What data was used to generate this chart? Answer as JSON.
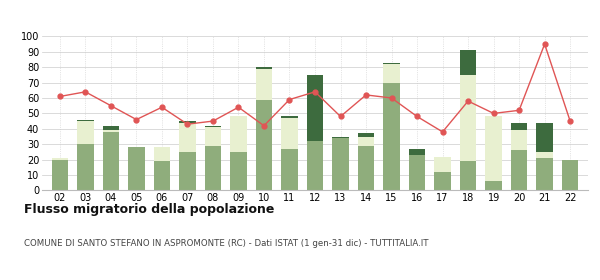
{
  "years": [
    "02",
    "03",
    "04",
    "05",
    "06",
    "07",
    "08",
    "09",
    "10",
    "11",
    "12",
    "13",
    "14",
    "15",
    "16",
    "17",
    "18",
    "19",
    "20",
    "21",
    "22"
  ],
  "iscritti_altri_comuni": [
    20,
    30,
    38,
    28,
    19,
    25,
    29,
    25,
    59,
    27,
    32,
    34,
    29,
    70,
    23,
    12,
    19,
    6,
    26,
    21,
    20
  ],
  "iscritti_estero": [
    1,
    15,
    1,
    0,
    9,
    19,
    12,
    23,
    20,
    20,
    0,
    0,
    6,
    12,
    0,
    10,
    56,
    42,
    13,
    4,
    0
  ],
  "iscritti_altri": [
    0,
    1,
    3,
    0,
    0,
    1,
    1,
    0,
    1,
    1,
    43,
    1,
    2,
    1,
    4,
    0,
    16,
    0,
    5,
    19,
    0
  ],
  "cancellati": [
    61,
    64,
    55,
    46,
    54,
    43,
    45,
    54,
    42,
    59,
    64,
    48,
    62,
    60,
    48,
    38,
    58,
    50,
    52,
    95,
    45
  ],
  "color_altri_comuni": "#8fad7c",
  "color_estero": "#e8f0d0",
  "color_altri": "#3d6b3e",
  "color_cancellati": "#e05555",
  "title": "Flusso migratorio della popolazione",
  "subtitle": "COMUNE DI SANTO STEFANO IN ASPROMONTE (RC) - Dati ISTAT (1 gen-31 dic) - TUTTITALIA.IT",
  "ylim": [
    0,
    100
  ],
  "yticks": [
    0,
    10,
    20,
    30,
    40,
    50,
    60,
    70,
    80,
    90,
    100
  ],
  "background_color": "#ffffff",
  "grid_color": "#cccccc"
}
